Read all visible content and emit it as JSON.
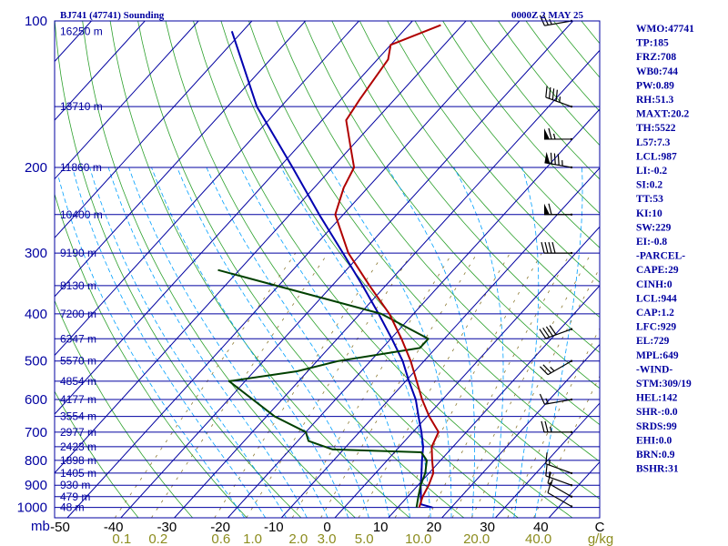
{
  "title": {
    "station": "BJ741 (47741) Sounding",
    "time": "0000Z  2 MAY 25"
  },
  "colors": {
    "axis": "#0000a0",
    "isobar": "#0000a0",
    "isotherm": "#0000a0",
    "dry_adiabat": "#2ca02c",
    "moist_adiabat": "#00a0ff",
    "mixing_ratio": "#8c7a32",
    "temperature": "#b00000",
    "dewpoint": "#004000",
    "parcel": "#0000b0",
    "wind": "#000000"
  },
  "chart_data": {
    "type": "skew-t log-p",
    "p_ticks": [
      "100",
      "200",
      "300",
      "400",
      "500",
      "600",
      "700",
      "800",
      "900",
      "1000"
    ],
    "p_unit": "mb",
    "height_labels": [
      {
        "p": 105,
        "label": "16250 m"
      },
      {
        "p": 150,
        "label": "13710 m"
      },
      {
        "p": 200,
        "label": "11860 m"
      },
      {
        "p": 250,
        "label": "10400 m"
      },
      {
        "p": 300,
        "label": "9190 m"
      },
      {
        "p": 350,
        "label": "8130 m"
      },
      {
        "p": 400,
        "label": "7200 m"
      },
      {
        "p": 450,
        "label": "6347 m"
      },
      {
        "p": 500,
        "label": "5570 m"
      },
      {
        "p": 550,
        "label": "4854 m"
      },
      {
        "p": 600,
        "label": "4177 m"
      },
      {
        "p": 650,
        "label": "3554 m"
      },
      {
        "p": 700,
        "label": "2977 m"
      },
      {
        "p": 750,
        "label": "2423 m"
      },
      {
        "p": 800,
        "label": "1898 m"
      },
      {
        "p": 850,
        "label": "1405 m"
      },
      {
        "p": 900,
        "label": "930 m"
      },
      {
        "p": 950,
        "label": "479 m"
      },
      {
        "p": 1000,
        "label": "48 m"
      }
    ],
    "t_ticks": [
      "-50",
      "-40",
      "-30",
      "-20",
      "-10",
      "0",
      "10",
      "20",
      "30",
      "40",
      "C"
    ],
    "mixing_ratio_ticks": [
      "0.1",
      "0.2",
      "0.6",
      "1.0",
      "2.0",
      "3.0",
      "5.0",
      "10.0",
      "20.0",
      "40.0",
      "g/kg"
    ],
    "temperature": [
      {
        "p": 1000,
        "t": 14.0
      },
      {
        "p": 950,
        "t": 12.8
      },
      {
        "p": 900,
        "t": 12.0
      },
      {
        "p": 850,
        "t": 10.8
      },
      {
        "p": 800,
        "t": 8.4
      },
      {
        "p": 750,
        "t": 6.0
      },
      {
        "p": 700,
        "t": 4.8
      },
      {
        "p": 650,
        "t": 0.4
      },
      {
        "p": 600,
        "t": -3.8
      },
      {
        "p": 500,
        "t": -12.5
      },
      {
        "p": 450,
        "t": -18.0
      },
      {
        "p": 400,
        "t": -24.5
      },
      {
        "p": 350,
        "t": -33.0
      },
      {
        "p": 300,
        "t": -42.5
      },
      {
        "p": 250,
        "t": -51.5
      },
      {
        "p": 220,
        "t": -54.5
      },
      {
        "p": 200,
        "t": -56.0
      },
      {
        "p": 180,
        "t": -60.5
      },
      {
        "p": 160,
        "t": -65.5
      },
      {
        "p": 145,
        "t": -66.5
      },
      {
        "p": 120,
        "t": -68.0
      },
      {
        "p": 112,
        "t": -70.0
      },
      {
        "p": 102,
        "t": -64.0
      }
    ],
    "dewpoint": [
      {
        "p": 1000,
        "t": 13.5
      },
      {
        "p": 950,
        "t": 12.0
      },
      {
        "p": 900,
        "t": 10.5
      },
      {
        "p": 850,
        "t": 9.3
      },
      {
        "p": 800,
        "t": 7.4
      },
      {
        "p": 770,
        "t": 5.0
      },
      {
        "p": 760,
        "t": -12.0
      },
      {
        "p": 730,
        "t": -18.0
      },
      {
        "p": 700,
        "t": -20.0
      },
      {
        "p": 650,
        "t": -28.5
      },
      {
        "p": 550,
        "t": -43.0
      },
      {
        "p": 525,
        "t": -32.0
      },
      {
        "p": 500,
        "t": -26.0
      },
      {
        "p": 470,
        "t": -13.0
      },
      {
        "p": 450,
        "t": -13.0
      },
      {
        "p": 400,
        "t": -26.0
      },
      {
        "p": 325,
        "t": -64.0
      }
    ],
    "parcel": [
      {
        "p": 1000,
        "t": 16.5
      },
      {
        "p": 985,
        "t": 13.8
      },
      {
        "p": 950,
        "t": 12.5
      },
      {
        "p": 900,
        "t": 10.5
      },
      {
        "p": 850,
        "t": 8.6
      },
      {
        "p": 800,
        "t": 6.5
      },
      {
        "p": 750,
        "t": 4.4
      },
      {
        "p": 700,
        "t": 1.6
      },
      {
        "p": 650,
        "t": -1.6
      },
      {
        "p": 600,
        "t": -5.0
      },
      {
        "p": 550,
        "t": -9.4
      },
      {
        "p": 500,
        "t": -14.0
      },
      {
        "p": 450,
        "t": -19.8
      },
      {
        "p": 400,
        "t": -26.5
      },
      {
        "p": 350,
        "t": -34.3
      },
      {
        "p": 300,
        "t": -43.5
      },
      {
        "p": 250,
        "t": -54.5
      },
      {
        "p": 200,
        "t": -67.5
      },
      {
        "p": 150,
        "t": -84.5
      },
      {
        "p": 105,
        "t": -102.0
      }
    ],
    "wind_barbs": [
      {
        "p": 995,
        "dir": 300,
        "spd": 10
      },
      {
        "p": 950,
        "dir": 300,
        "spd": 15
      },
      {
        "p": 900,
        "dir": 290,
        "spd": 15
      },
      {
        "p": 850,
        "dir": 290,
        "spd": 15
      },
      {
        "p": 700,
        "dir": 270,
        "spd": 25
      },
      {
        "p": 600,
        "dir": 260,
        "spd": 15
      },
      {
        "p": 500,
        "dir": 240,
        "spd": 25
      },
      {
        "p": 430,
        "dir": 250,
        "spd": 40
      },
      {
        "p": 300,
        "dir": 270,
        "spd": 40
      },
      {
        "p": 250,
        "dir": 270,
        "spd": 60
      },
      {
        "p": 200,
        "dir": 280,
        "spd": 85
      },
      {
        "p": 175,
        "dir": 270,
        "spd": 65
      },
      {
        "p": 150,
        "dir": 290,
        "spd": 45
      },
      {
        "p": 100,
        "dir": 260,
        "spd": 25
      }
    ]
  },
  "indices": [
    "WMO:47741",
    "TP:185",
    "FRZ:708",
    "WB0:744",
    "PW:0.89",
    "RH:51.3",
    "MAXT:20.2",
    "TH:5522",
    "L57:7.3",
    "LCL:987",
    "LI:-0.2",
    "SI:0.2",
    "TT:53",
    "KI:10",
    "SW:229",
    "EI:-0.8",
    "-PARCEL-",
    "CAPE:29",
    "CINH:0",
    "LCL:944",
    "CAP:1.2",
    "LFC:929",
    "EL:729",
    "MPL:649",
    "-WIND-",
    "STM:309/19",
    "HEL:142",
    "SHR-:0.0",
    "SRDS:99",
    "EHI:0.0",
    "BRN:0.9",
    "BSHR:31"
  ]
}
